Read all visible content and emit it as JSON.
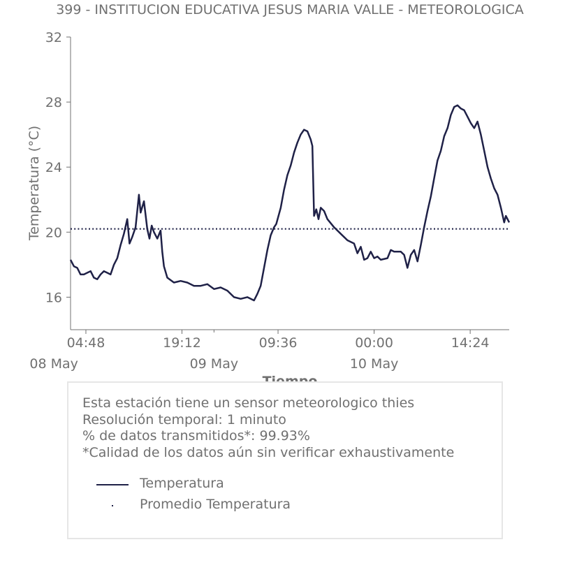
{
  "chart_data": {
    "type": "line",
    "title": "399 - INSTITUCION EDUCATIVA JESUS MARIA VALLE - METEOROLOGICA",
    "xlabel": "Tiempo",
    "ylabel": "Temperatura (°C)",
    "ylim": [
      14,
      32
    ],
    "yticks": [
      "16",
      "20",
      "24",
      "28",
      "32"
    ],
    "x_range": [
      "2024-05-08 02:30",
      "2024-05-10 20:15"
    ],
    "xticks": [
      {
        "t": "2024-05-08 04:48",
        "label": "04:48"
      },
      {
        "t": "2024-05-08 19:12",
        "label": "19:12"
      },
      {
        "t": "2024-05-09 09:36",
        "label": "09:36"
      },
      {
        "t": "2024-05-10 00:00",
        "label": "00:00"
      },
      {
        "t": "2024-05-10 14:24",
        "label": "14:24"
      }
    ],
    "date_labels": [
      {
        "t": "2024-05-08 00:00",
        "label": "08 May"
      },
      {
        "t": "2024-05-09 00:00",
        "label": "09 May"
      },
      {
        "t": "2024-05-10 00:00",
        "label": "10 May"
      }
    ],
    "series": [
      {
        "name": "Temperatura",
        "color": "#1f2147",
        "style": "solid",
        "points": [
          [
            "2024-05-08 02:30",
            18.3
          ],
          [
            "2024-05-08 03:00",
            17.9
          ],
          [
            "2024-05-08 03:30",
            17.8
          ],
          [
            "2024-05-08 04:00",
            17.4
          ],
          [
            "2024-05-08 04:30",
            17.4
          ],
          [
            "2024-05-08 05:00",
            17.5
          ],
          [
            "2024-05-08 05:30",
            17.6
          ],
          [
            "2024-05-08 06:00",
            17.2
          ],
          [
            "2024-05-08 06:30",
            17.1
          ],
          [
            "2024-05-08 07:00",
            17.4
          ],
          [
            "2024-05-08 07:30",
            17.6
          ],
          [
            "2024-05-08 08:00",
            17.5
          ],
          [
            "2024-05-08 08:30",
            17.4
          ],
          [
            "2024-05-08 09:00",
            18.0
          ],
          [
            "2024-05-08 09:30",
            18.4
          ],
          [
            "2024-05-08 10:00",
            19.2
          ],
          [
            "2024-05-08 10:30",
            19.9
          ],
          [
            "2024-05-08 11:00",
            20.8
          ],
          [
            "2024-05-08 11:20",
            19.3
          ],
          [
            "2024-05-08 11:45",
            19.7
          ],
          [
            "2024-05-08 12:15",
            20.3
          ],
          [
            "2024-05-08 12:45",
            22.3
          ],
          [
            "2024-05-08 13:00",
            21.2
          ],
          [
            "2024-05-08 13:30",
            21.9
          ],
          [
            "2024-05-08 14:00",
            20.2
          ],
          [
            "2024-05-08 14:20",
            19.6
          ],
          [
            "2024-05-08 14:40",
            20.4
          ],
          [
            "2024-05-08 15:00",
            20.0
          ],
          [
            "2024-05-08 15:30",
            19.6
          ],
          [
            "2024-05-08 16:00",
            20.1
          ],
          [
            "2024-05-08 16:15",
            18.8
          ],
          [
            "2024-05-08 16:30",
            17.9
          ],
          [
            "2024-05-08 17:00",
            17.2
          ],
          [
            "2024-05-08 18:00",
            16.9
          ],
          [
            "2024-05-08 19:00",
            17.0
          ],
          [
            "2024-05-08 20:00",
            16.9
          ],
          [
            "2024-05-08 21:00",
            16.7
          ],
          [
            "2024-05-08 22:00",
            16.7
          ],
          [
            "2024-05-08 23:00",
            16.8
          ],
          [
            "2024-05-09 00:00",
            16.5
          ],
          [
            "2024-05-09 01:00",
            16.6
          ],
          [
            "2024-05-09 02:00",
            16.4
          ],
          [
            "2024-05-09 03:00",
            16.0
          ],
          [
            "2024-05-09 04:00",
            15.9
          ],
          [
            "2024-05-09 05:00",
            16.0
          ],
          [
            "2024-05-09 06:00",
            15.8
          ],
          [
            "2024-05-09 06:30",
            16.2
          ],
          [
            "2024-05-09 07:00",
            16.7
          ],
          [
            "2024-05-09 07:30",
            17.8
          ],
          [
            "2024-05-09 08:00",
            18.9
          ],
          [
            "2024-05-09 08:30",
            19.8
          ],
          [
            "2024-05-09 09:00",
            20.3
          ],
          [
            "2024-05-09 09:20",
            20.5
          ],
          [
            "2024-05-09 10:00",
            21.5
          ],
          [
            "2024-05-09 10:30",
            22.6
          ],
          [
            "2024-05-09 11:00",
            23.5
          ],
          [
            "2024-05-09 11:30",
            24.1
          ],
          [
            "2024-05-09 12:00",
            24.9
          ],
          [
            "2024-05-09 12:30",
            25.5
          ],
          [
            "2024-05-09 13:00",
            26.0
          ],
          [
            "2024-05-09 13:30",
            26.3
          ],
          [
            "2024-05-09 14:00",
            26.2
          ],
          [
            "2024-05-09 14:30",
            25.7
          ],
          [
            "2024-05-09 14:45",
            25.3
          ],
          [
            "2024-05-09 15:00",
            21.0
          ],
          [
            "2024-05-09 15:20",
            21.4
          ],
          [
            "2024-05-09 15:40",
            20.8
          ],
          [
            "2024-05-09 16:00",
            21.5
          ],
          [
            "2024-05-09 16:30",
            21.3
          ],
          [
            "2024-05-09 17:00",
            20.8
          ],
          [
            "2024-05-09 18:00",
            20.3
          ],
          [
            "2024-05-09 19:00",
            19.9
          ],
          [
            "2024-05-09 20:00",
            19.5
          ],
          [
            "2024-05-09 21:00",
            19.3
          ],
          [
            "2024-05-09 21:30",
            18.7
          ],
          [
            "2024-05-09 22:00",
            19.1
          ],
          [
            "2024-05-09 22:30",
            18.3
          ],
          [
            "2024-05-09 23:00",
            18.4
          ],
          [
            "2024-05-09 23:30",
            18.8
          ],
          [
            "2024-05-10 00:00",
            18.4
          ],
          [
            "2024-05-10 00:30",
            18.5
          ],
          [
            "2024-05-10 01:00",
            18.3
          ],
          [
            "2024-05-10 02:00",
            18.4
          ],
          [
            "2024-05-10 02:30",
            18.9
          ],
          [
            "2024-05-10 03:00",
            18.8
          ],
          [
            "2024-05-10 04:00",
            18.8
          ],
          [
            "2024-05-10 04:30",
            18.6
          ],
          [
            "2024-05-10 05:00",
            17.8
          ],
          [
            "2024-05-10 05:30",
            18.6
          ],
          [
            "2024-05-10 06:00",
            18.9
          ],
          [
            "2024-05-10 06:30",
            18.2
          ],
          [
            "2024-05-10 07:00",
            19.2
          ],
          [
            "2024-05-10 07:30",
            20.3
          ],
          [
            "2024-05-10 08:00",
            21.3
          ],
          [
            "2024-05-10 08:30",
            22.2
          ],
          [
            "2024-05-10 09:00",
            23.3
          ],
          [
            "2024-05-10 09:30",
            24.4
          ],
          [
            "2024-05-10 10:00",
            25.0
          ],
          [
            "2024-05-10 10:30",
            25.9
          ],
          [
            "2024-05-10 11:00",
            26.4
          ],
          [
            "2024-05-10 11:30",
            27.2
          ],
          [
            "2024-05-10 12:00",
            27.7
          ],
          [
            "2024-05-10 12:30",
            27.8
          ],
          [
            "2024-05-10 13:00",
            27.6
          ],
          [
            "2024-05-10 13:30",
            27.5
          ],
          [
            "2024-05-10 14:00",
            27.1
          ],
          [
            "2024-05-10 14:30",
            26.7
          ],
          [
            "2024-05-10 15:00",
            26.4
          ],
          [
            "2024-05-10 15:30",
            26.8
          ],
          [
            "2024-05-10 16:00",
            26.0
          ],
          [
            "2024-05-10 16:30",
            25.0
          ],
          [
            "2024-05-10 17:00",
            24.0
          ],
          [
            "2024-05-10 17:30",
            23.3
          ],
          [
            "2024-05-10 18:00",
            22.7
          ],
          [
            "2024-05-10 18:30",
            22.3
          ],
          [
            "2024-05-10 19:00",
            21.5
          ],
          [
            "2024-05-10 19:30",
            20.6
          ],
          [
            "2024-05-10 19:45",
            21.0
          ],
          [
            "2024-05-10 20:15",
            20.6
          ]
        ]
      },
      {
        "name": "Promedio Temperatura",
        "color": "#1f2147",
        "style": "dotted",
        "constant": 20.2
      }
    ],
    "grid": false,
    "legend_position": "bottom"
  },
  "info": {
    "lines": [
      "Esta estación tiene un sensor meteorologico thies",
      "Resolución temporal: 1 minuto",
      "% de datos transmitidos*: 99.93%",
      "*Calidad de los datos aún sin verificar exhaustivamente"
    ]
  },
  "legend": [
    {
      "label": "Temperatura"
    },
    {
      "label": "Promedio Temperatura"
    }
  ]
}
